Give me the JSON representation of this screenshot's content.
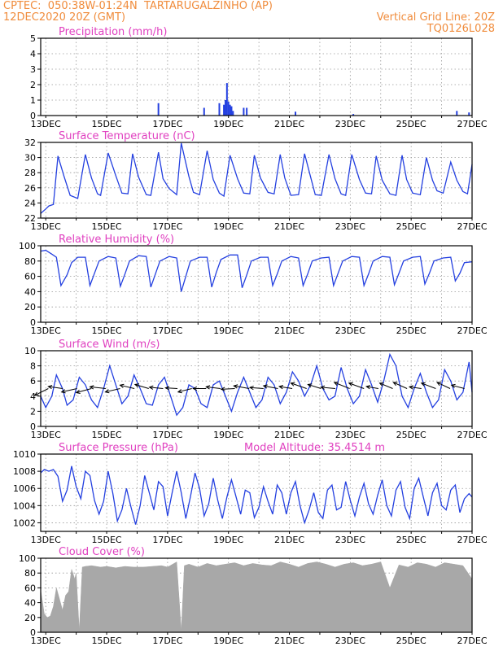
{
  "header": {
    "line1": "CPTEC:  050:38W-01:24N  TARTARUGALZINHO (AP)",
    "line2_left": "12DEC2020 20Z (GMT)",
    "line2_right": "Vertical Grid Line: 20Z",
    "line3_right": "TQ0126L028"
  },
  "colors": {
    "header": "#f08c3c",
    "panel_title": "#e040c0",
    "series": "#2440e0",
    "wind_arrow": "#000000",
    "cloud_fill": "#a8a8a8",
    "grid": "#999999"
  },
  "x_axis": {
    "start": "12DEC2020 20Z",
    "end": "27DEC2020 00Z",
    "tick_labels": [
      "13DEC",
      "15DEC",
      "17DEC",
      "19DEC",
      "21DEC",
      "23DEC",
      "25DEC",
      "27DEC"
    ]
  },
  "chart_data": [
    {
      "type": "bar",
      "title": "Precipitation (mm/h)",
      "ylim": [
        0,
        5
      ],
      "yticks": [
        0,
        1,
        2,
        3,
        4,
        5
      ],
      "x_unit": "day",
      "x": [
        16.7,
        18.2,
        18.7,
        18.85,
        18.9,
        18.95,
        19.0,
        19.05,
        19.1,
        19.15,
        19.5,
        19.6,
        21.2,
        23.1,
        26.5,
        26.9
      ],
      "values": [
        0.8,
        0.5,
        0.8,
        0.7,
        1.0,
        2.1,
        0.9,
        0.7,
        0.6,
        0.3,
        0.5,
        0.5,
        0.25,
        0.1,
        0.3,
        0.2
      ]
    },
    {
      "type": "line",
      "title": "Surface Temperature (nC)",
      "ylim": [
        22,
        32
      ],
      "yticks": [
        22,
        24,
        26,
        28,
        30,
        32
      ],
      "x_unit": "day",
      "x": [
        12.83,
        13.0,
        13.1,
        13.25,
        13.4,
        13.6,
        13.8,
        14.05,
        14.3,
        14.5,
        14.7,
        14.8,
        15.05,
        15.3,
        15.5,
        15.7,
        15.85,
        16.05,
        16.3,
        16.45,
        16.7,
        16.85,
        17.05,
        17.3,
        17.45,
        17.7,
        17.85,
        18.05,
        18.3,
        18.5,
        18.7,
        18.85,
        19.05,
        19.3,
        19.5,
        19.7,
        19.85,
        20.05,
        20.3,
        20.5,
        20.7,
        20.85,
        21.05,
        21.3,
        21.5,
        21.7,
        21.85,
        22.05,
        22.3,
        22.5,
        22.7,
        22.85,
        23.05,
        23.3,
        23.5,
        23.7,
        23.85,
        24.05,
        24.3,
        24.5,
        24.7,
        24.85,
        25.05,
        25.3,
        25.5,
        25.7,
        25.85,
        26.05,
        26.3,
        26.5,
        26.7,
        26.85,
        27.0
      ],
      "values": [
        22.6,
        23.2,
        23.6,
        23.8,
        30.2,
        27.5,
        25.0,
        24.6,
        30.4,
        27.3,
        25.2,
        25.0,
        30.6,
        27.6,
        25.3,
        25.2,
        30.5,
        27.4,
        25.1,
        25.0,
        30.7,
        27.2,
        25.9,
        25.1,
        31.9,
        27.5,
        25.4,
        25.1,
        30.9,
        27.1,
        25.3,
        24.9,
        30.3,
        27.2,
        25.3,
        25.2,
        30.3,
        27.3,
        25.4,
        25.2,
        30.4,
        27.3,
        25.0,
        25.1,
        30.5,
        27.4,
        25.1,
        25.0,
        30.4,
        27.2,
        25.2,
        25.0,
        30.4,
        27.1,
        25.3,
        25.2,
        30.2,
        27.0,
        25.2,
        25.0,
        30.3,
        27.1,
        25.3,
        25.1,
        30.0,
        27.0,
        25.6,
        25.3,
        29.4,
        27.0,
        25.5,
        25.2,
        29.1
      ]
    },
    {
      "type": "line",
      "title": "Relative Humidity (%)",
      "ylim": [
        0,
        100
      ],
      "yticks": [
        0,
        20,
        40,
        60,
        80,
        100
      ],
      "x_unit": "day",
      "x": [
        12.83,
        13.0,
        13.2,
        13.35,
        13.5,
        13.7,
        13.85,
        14.05,
        14.3,
        14.45,
        14.6,
        14.75,
        15.05,
        15.3,
        15.45,
        15.6,
        15.75,
        16.05,
        16.3,
        16.45,
        16.6,
        16.75,
        17.05,
        17.3,
        17.45,
        17.6,
        17.75,
        18.05,
        18.3,
        18.45,
        18.6,
        18.75,
        19.05,
        19.3,
        19.45,
        19.6,
        19.75,
        20.05,
        20.3,
        20.45,
        20.6,
        20.75,
        21.05,
        21.3,
        21.45,
        21.6,
        21.75,
        22.05,
        22.3,
        22.45,
        22.6,
        22.75,
        23.05,
        23.3,
        23.45,
        23.6,
        23.75,
        24.05,
        24.3,
        24.45,
        24.6,
        24.75,
        25.05,
        25.3,
        25.45,
        25.6,
        25.75,
        26.05,
        26.3,
        26.45,
        26.6,
        26.75,
        27.0
      ],
      "values": [
        93,
        94,
        89,
        85,
        48,
        62,
        78,
        85,
        85,
        48,
        64,
        80,
        86,
        84,
        47,
        63,
        80,
        87,
        86,
        46,
        63,
        80,
        86,
        84,
        40,
        60,
        80,
        85,
        85,
        46,
        65,
        82,
        88,
        88,
        45,
        62,
        80,
        85,
        85,
        48,
        63,
        80,
        86,
        84,
        48,
        63,
        80,
        84,
        85,
        48,
        64,
        80,
        86,
        85,
        48,
        63,
        80,
        86,
        85,
        49,
        64,
        80,
        85,
        86,
        50,
        64,
        80,
        84,
        85,
        54,
        64,
        78,
        79
      ]
    },
    {
      "type": "line",
      "title": "Surface Wind (m/s)",
      "ylim": [
        0,
        10
      ],
      "yticks": [
        0,
        2,
        4,
        6,
        8,
        10
      ],
      "x_unit": "day",
      "x": [
        12.83,
        13.0,
        13.2,
        13.35,
        13.55,
        13.7,
        13.9,
        14.1,
        14.3,
        14.5,
        14.7,
        14.9,
        15.1,
        15.3,
        15.5,
        15.7,
        15.9,
        16.1,
        16.3,
        16.5,
        16.7,
        16.9,
        17.1,
        17.3,
        17.5,
        17.7,
        17.9,
        18.1,
        18.3,
        18.5,
        18.7,
        18.9,
        19.1,
        19.3,
        19.5,
        19.7,
        19.9,
        20.1,
        20.3,
        20.5,
        20.7,
        20.9,
        21.1,
        21.3,
        21.5,
        21.7,
        21.9,
        22.1,
        22.3,
        22.5,
        22.7,
        22.9,
        23.1,
        23.3,
        23.5,
        23.7,
        23.9,
        24.1,
        24.3,
        24.5,
        24.7,
        24.9,
        25.1,
        25.3,
        25.5,
        25.7,
        25.9,
        26.1,
        26.3,
        26.5,
        26.7,
        26.9,
        27.0
      ],
      "values": [
        4.0,
        2.5,
        4.0,
        6.8,
        5.0,
        2.8,
        3.5,
        6.5,
        5.5,
        3.5,
        2.5,
        5.0,
        8.0,
        5.5,
        3.0,
        4.0,
        6.8,
        5.0,
        3.0,
        2.8,
        5.5,
        6.5,
        4.0,
        1.5,
        2.5,
        5.5,
        5.0,
        3.0,
        2.5,
        5.5,
        6.0,
        4.0,
        2.0,
        4.5,
        6.5,
        4.5,
        2.5,
        3.5,
        6.5,
        5.5,
        3.0,
        4.5,
        7.2,
        6.0,
        4.0,
        5.5,
        8.0,
        5.0,
        3.5,
        4.0,
        7.8,
        5.0,
        3.0,
        4.0,
        7.5,
        5.5,
        3.2,
        6.0,
        9.5,
        8.0,
        4.0,
        2.5,
        5.0,
        7.0,
        4.5,
        2.5,
        3.5,
        7.5,
        6.0,
        3.5,
        4.5,
        8.5,
        4.5
      ],
      "wind_vectors_u": [
        -4.0,
        -4.2,
        -4.5,
        -4.4,
        -4.6,
        -4.3,
        -4.2,
        -4.0,
        -4.0,
        -3.5,
        -4.0,
        -3.8,
        -4.2,
        -4.0,
        -4.5,
        -4.0,
        -4.2,
        -3.8,
        -4.6,
        -3.8,
        -4.2,
        -4.5,
        -4.4,
        -3.5,
        -3.8,
        -4.0,
        -3.5,
        -4.2,
        -3.8,
        -3.8
      ],
      "wind_vectors_v": [
        -2.0,
        0.6,
        -1.0,
        -1.2,
        0.5,
        -1.0,
        1.0,
        1.2,
        0.4,
        0.2,
        -1.0,
        0.0,
        0.5,
        -0.2,
        0.8,
        0.3,
        0.8,
        0.6,
        1.6,
        1.2,
        0.4,
        1.8,
        1.6,
        0.6,
        1.6,
        1.8,
        0.5,
        1.6,
        1.8,
        1.0
      ]
    },
    {
      "type": "line",
      "title": "Surface Pressure (hPa)",
      "subtitle": "Model Altitude: 35.4514 m",
      "ylim": [
        1001,
        1010
      ],
      "yticks": [
        1002,
        1004,
        1006,
        1008,
        1010
      ],
      "x_unit": "day",
      "x": [
        12.83,
        12.95,
        13.1,
        13.25,
        13.4,
        13.55,
        13.7,
        13.85,
        14.0,
        14.15,
        14.3,
        14.45,
        14.6,
        14.75,
        14.9,
        15.05,
        15.2,
        15.35,
        15.5,
        15.65,
        15.8,
        15.95,
        16.1,
        16.25,
        16.4,
        16.55,
        16.7,
        16.85,
        17.0,
        17.15,
        17.3,
        17.45,
        17.6,
        17.75,
        17.9,
        18.05,
        18.2,
        18.35,
        18.5,
        18.65,
        18.8,
        18.95,
        19.1,
        19.25,
        19.4,
        19.55,
        19.7,
        19.85,
        20.0,
        20.15,
        20.3,
        20.45,
        20.6,
        20.75,
        20.9,
        21.05,
        21.2,
        21.35,
        21.5,
        21.65,
        21.8,
        21.95,
        22.1,
        22.25,
        22.4,
        22.55,
        22.7,
        22.85,
        23.0,
        23.15,
        23.3,
        23.45,
        23.6,
        23.75,
        23.9,
        24.05,
        24.2,
        24.35,
        24.5,
        24.65,
        24.8,
        24.95,
        25.1,
        25.25,
        25.4,
        25.55,
        25.7,
        25.85,
        26.0,
        26.15,
        26.3,
        26.45,
        26.6,
        26.75,
        26.9,
        27.0
      ],
      "values": [
        1007.8,
        1008.2,
        1008.0,
        1008.2,
        1007.4,
        1004.5,
        1005.8,
        1008.6,
        1006.2,
        1004.8,
        1008.0,
        1007.5,
        1004.6,
        1003.0,
        1004.5,
        1008.0,
        1005.5,
        1002.2,
        1003.5,
        1006.0,
        1003.8,
        1001.8,
        1004.0,
        1007.5,
        1005.5,
        1003.5,
        1006.8,
        1006.2,
        1002.8,
        1005.5,
        1008.0,
        1005.5,
        1002.5,
        1005.0,
        1007.8,
        1006.0,
        1002.8,
        1004.2,
        1007.2,
        1004.6,
        1002.5,
        1005.0,
        1007.0,
        1005.0,
        1003.0,
        1005.8,
        1005.5,
        1002.6,
        1003.8,
        1006.2,
        1004.5,
        1003.0,
        1006.4,
        1005.5,
        1003.0,
        1005.5,
        1006.8,
        1004.0,
        1002.0,
        1003.5,
        1005.5,
        1003.2,
        1002.5,
        1005.8,
        1006.4,
        1003.5,
        1003.8,
        1006.8,
        1004.6,
        1002.8,
        1005.0,
        1006.6,
        1004.2,
        1003.0,
        1005.2,
        1007.0,
        1004.0,
        1002.8,
        1005.8,
        1006.8,
        1003.8,
        1002.5,
        1006.0,
        1007.2,
        1005.0,
        1002.8,
        1005.5,
        1006.6,
        1004.0,
        1003.5,
        1005.8,
        1006.4,
        1003.2,
        1004.8,
        1005.4,
        1005.0
      ]
    },
    {
      "type": "area",
      "title": "Cloud Cover (%)",
      "ylim": [
        0,
        100
      ],
      "yticks": [
        0,
        20,
        40,
        60,
        80,
        100
      ],
      "x_unit": "day",
      "x": [
        12.83,
        12.95,
        13.05,
        13.15,
        13.25,
        13.35,
        13.45,
        13.55,
        13.65,
        13.75,
        13.85,
        13.95,
        14.0,
        14.1,
        14.2,
        14.3,
        14.5,
        14.8,
        15.0,
        15.3,
        15.6,
        15.9,
        16.2,
        16.5,
        16.8,
        17.0,
        17.3,
        17.45,
        17.55,
        17.7,
        18.0,
        18.3,
        18.6,
        18.9,
        19.2,
        19.5,
        19.8,
        20.1,
        20.4,
        20.7,
        21.0,
        21.3,
        21.6,
        21.9,
        22.2,
        22.5,
        22.8,
        23.1,
        23.4,
        23.7,
        24.0,
        24.3,
        24.6,
        24.9,
        25.2,
        25.5,
        25.8,
        26.1,
        26.4,
        26.7,
        27.0
      ],
      "values": [
        58,
        25,
        20,
        22,
        35,
        60,
        45,
        30,
        50,
        55,
        85,
        72,
        80,
        2,
        88,
        89,
        90,
        88,
        89,
        87,
        89,
        88,
        88,
        89,
        90,
        88,
        95,
        2,
        90,
        92,
        88,
        93,
        90,
        92,
        94,
        90,
        93,
        91,
        90,
        95,
        92,
        88,
        93,
        95,
        92,
        88,
        92,
        94,
        90,
        92,
        95,
        60,
        91,
        88,
        94,
        92,
        88,
        94,
        92,
        90,
        72
      ]
    }
  ]
}
